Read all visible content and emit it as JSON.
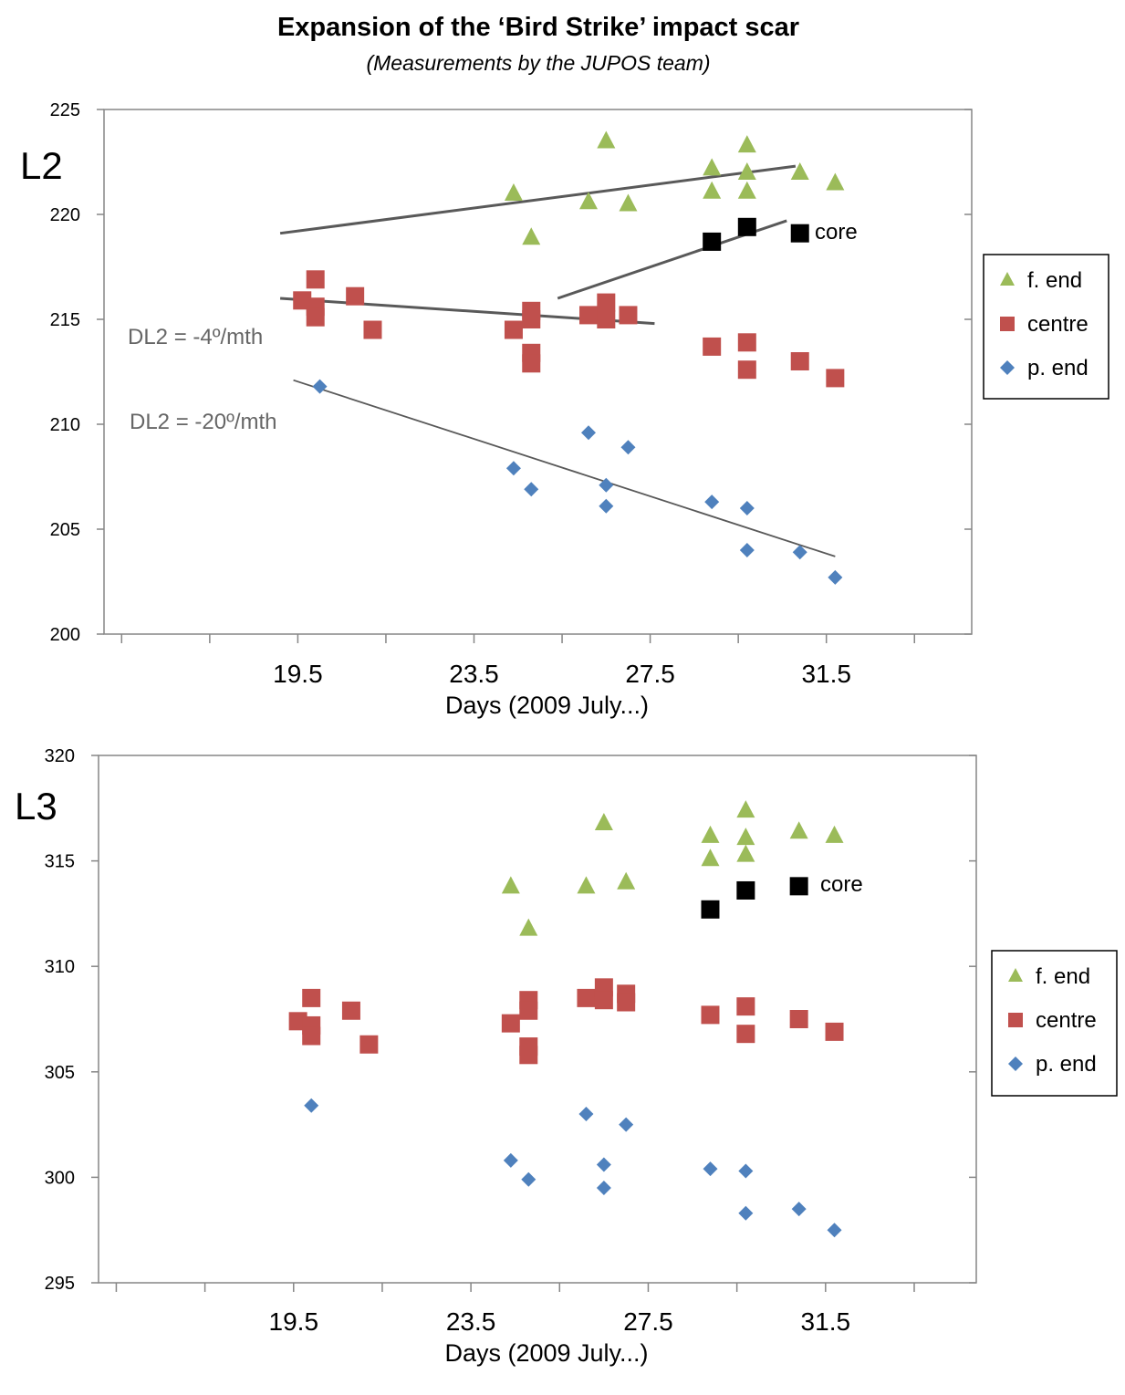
{
  "title": "Expansion of the ‘Bird Strike’ impact scar",
  "subtitle": "(Measurements by the JUPOS team)",
  "colors": {
    "f_end": "#9bbb59",
    "centre": "#c0504d",
    "p_end": "#4f81bd",
    "core": "#000000",
    "trend": "#595959"
  },
  "chart_data": [
    {
      "type": "scatter",
      "panel_label": "L2",
      "xlabel": "Days (2009 July...)",
      "ylabel": "",
      "xlim": [
        15.1,
        34.8
      ],
      "ylim": [
        200,
        225
      ],
      "x_ticks": [
        19.5,
        23.5,
        27.5,
        31.5
      ],
      "y_ticks": [
        200,
        205,
        210,
        215,
        220,
        225
      ],
      "legend": [
        "f. end",
        "centre",
        "p. end"
      ],
      "legend_position": "right",
      "grid": false,
      "series": [
        {
          "name": "f. end",
          "marker": "triangle",
          "points": [
            [
              24.4,
              221.0
            ],
            [
              24.8,
              218.9
            ],
            [
              26.1,
              220.6
            ],
            [
              26.5,
              223.5
            ],
            [
              27.0,
              220.5
            ],
            [
              28.9,
              222.2
            ],
            [
              28.9,
              221.1
            ],
            [
              29.7,
              223.3
            ],
            [
              29.7,
              222.0
            ],
            [
              29.7,
              221.1
            ],
            [
              30.9,
              222.0
            ],
            [
              31.7,
              221.5
            ]
          ]
        },
        {
          "name": "centre",
          "marker": "square",
          "points": [
            [
              19.6,
              215.9
            ],
            [
              19.9,
              216.9
            ],
            [
              19.9,
              215.6
            ],
            [
              19.9,
              215.1
            ],
            [
              20.8,
              216.1
            ],
            [
              21.2,
              214.5
            ],
            [
              24.4,
              214.5
            ],
            [
              24.8,
              215.4
            ],
            [
              24.8,
              215.0
            ],
            [
              24.8,
              213.4
            ],
            [
              24.8,
              212.9
            ],
            [
              26.1,
              215.2
            ],
            [
              26.5,
              215.8
            ],
            [
              26.5,
              215.0
            ],
            [
              27.0,
              215.2
            ],
            [
              28.9,
              213.7
            ],
            [
              29.7,
              213.9
            ],
            [
              29.7,
              212.6
            ],
            [
              30.9,
              213.0
            ],
            [
              31.7,
              212.2
            ]
          ]
        },
        {
          "name": "p. end",
          "marker": "diamond",
          "points": [
            [
              20.0,
              211.8
            ],
            [
              24.4,
              207.9
            ],
            [
              24.8,
              206.9
            ],
            [
              26.1,
              209.6
            ],
            [
              26.5,
              207.1
            ],
            [
              26.5,
              206.1
            ],
            [
              27.0,
              208.9
            ],
            [
              28.9,
              206.3
            ],
            [
              29.7,
              206.0
            ],
            [
              29.7,
              204.0
            ],
            [
              30.9,
              203.9
            ],
            [
              31.7,
              202.7
            ]
          ]
        },
        {
          "name": "core",
          "marker": "square",
          "points": [
            [
              28.9,
              218.7
            ],
            [
              29.7,
              219.4
            ],
            [
              30.9,
              219.1
            ]
          ]
        }
      ],
      "trend_lines": [
        {
          "series": "f. end",
          "from": [
            19.1,
            219.1
          ],
          "to": [
            30.8,
            222.3
          ]
        },
        {
          "series": "core",
          "from": [
            25.4,
            216.0
          ],
          "to": [
            30.6,
            219.7
          ]
        },
        {
          "series": "centre",
          "from": [
            19.1,
            216.0
          ],
          "to": [
            27.6,
            214.8
          ]
        },
        {
          "series": "p. end",
          "from": [
            19.4,
            212.1
          ],
          "to": [
            31.7,
            203.7
          ]
        }
      ],
      "annotations": [
        "core",
        "DL2 = -4º/mth",
        "DL2 = -20º/mth"
      ]
    },
    {
      "type": "scatter",
      "panel_label": "L3",
      "xlabel": "Days (2009 July...)",
      "ylabel": "",
      "xlim": [
        15.1,
        34.9
      ],
      "ylim": [
        295,
        320
      ],
      "x_ticks": [
        19.5,
        23.5,
        27.5,
        31.5
      ],
      "y_ticks": [
        295,
        300,
        305,
        310,
        315,
        320
      ],
      "legend": [
        "f. end",
        "centre",
        "p. end"
      ],
      "legend_position": "right",
      "grid": false,
      "series": [
        {
          "name": "f. end",
          "marker": "triangle",
          "points": [
            [
              24.4,
              313.8
            ],
            [
              24.8,
              311.8
            ],
            [
              26.1,
              313.8
            ],
            [
              26.5,
              316.8
            ],
            [
              27.0,
              314.0
            ],
            [
              28.9,
              316.2
            ],
            [
              28.9,
              315.1
            ],
            [
              29.7,
              317.4
            ],
            [
              29.7,
              316.1
            ],
            [
              29.7,
              315.3
            ],
            [
              30.9,
              316.4
            ],
            [
              31.7,
              316.2
            ]
          ]
        },
        {
          "name": "centre",
          "marker": "square",
          "points": [
            [
              19.6,
              307.4
            ],
            [
              19.9,
              308.5
            ],
            [
              19.9,
              307.2
            ],
            [
              19.9,
              306.7
            ],
            [
              20.8,
              307.9
            ],
            [
              21.2,
              306.3
            ],
            [
              24.4,
              307.3
            ],
            [
              24.8,
              308.4
            ],
            [
              24.8,
              307.9
            ],
            [
              24.8,
              306.2
            ],
            [
              24.8,
              305.8
            ],
            [
              26.1,
              308.5
            ],
            [
              26.5,
              309.0
            ],
            [
              26.5,
              308.4
            ],
            [
              27.0,
              308.7
            ],
            [
              27.0,
              308.3
            ],
            [
              28.9,
              307.7
            ],
            [
              29.7,
              308.1
            ],
            [
              29.7,
              306.8
            ],
            [
              30.9,
              307.5
            ],
            [
              31.7,
              306.9
            ]
          ]
        },
        {
          "name": "p. end",
          "marker": "diamond",
          "points": [
            [
              19.9,
              303.4
            ],
            [
              24.4,
              300.8
            ],
            [
              24.8,
              299.9
            ],
            [
              26.1,
              303.0
            ],
            [
              26.5,
              300.6
            ],
            [
              26.5,
              299.5
            ],
            [
              27.0,
              302.5
            ],
            [
              28.9,
              300.4
            ],
            [
              29.7,
              300.3
            ],
            [
              29.7,
              298.3
            ],
            [
              30.9,
              298.5
            ],
            [
              31.7,
              297.5
            ]
          ]
        },
        {
          "name": "core",
          "marker": "square",
          "points": [
            [
              28.9,
              312.7
            ],
            [
              29.7,
              313.6
            ],
            [
              30.9,
              313.8
            ]
          ]
        }
      ],
      "trend_lines": [],
      "annotations": [
        "core"
      ]
    }
  ]
}
